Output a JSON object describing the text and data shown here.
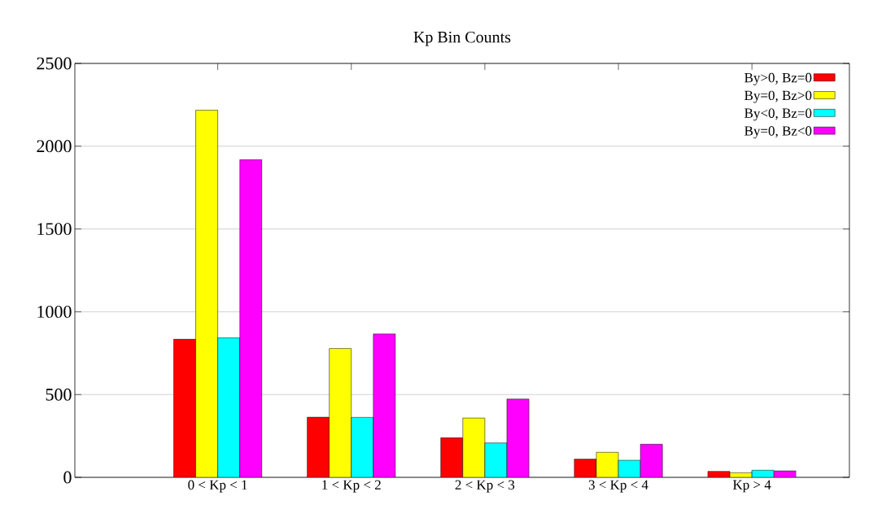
{
  "chart_data": {
    "type": "bar",
    "title": "Kp Bin Counts",
    "categories": [
      "0 < Kp < 1",
      "1 < Kp < 2",
      "2 < Kp < 3",
      "3 < Kp < 4",
      "Kp > 4"
    ],
    "series": [
      {
        "name": "By>0, Bz=0",
        "color": "#ff0000",
        "values": [
          835,
          363,
          239,
          110,
          36
        ]
      },
      {
        "name": "By=0, Bz>0",
        "color": "#ffff00",
        "values": [
          2218,
          778,
          358,
          151,
          28
        ]
      },
      {
        "name": "By<0, Bz=0",
        "color": "#00ffff",
        "values": [
          843,
          362,
          208,
          103,
          43
        ]
      },
      {
        "name": "By=0, Bz<0",
        "color": "#ff00ff",
        "values": [
          1919,
          866,
          473,
          200,
          39
        ]
      }
    ],
    "ylim": [
      0,
      2500
    ],
    "yticks": [
      0,
      500,
      1000,
      1500,
      2000,
      2500
    ],
    "grid": "y",
    "legend": "top right"
  }
}
